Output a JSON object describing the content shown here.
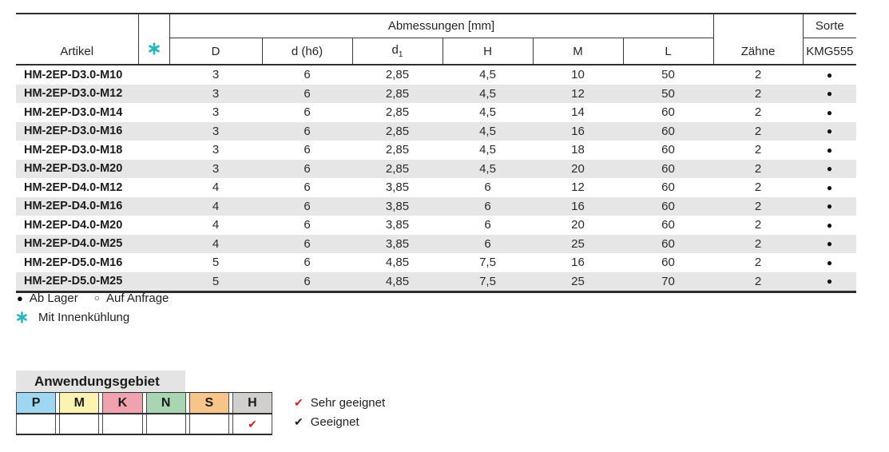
{
  "colors": {
    "accent_teal": "#2ab5c1",
    "check_red": "#d3222a",
    "check_black": "#1d1d1d",
    "row_stripe": "#e6e6e6",
    "anw_header_bg": "#e4e4e4"
  },
  "table": {
    "header": {
      "artikel": "Artikel",
      "abmessungen": "Abmessungen [mm]",
      "dims": [
        "D",
        "d (h6)",
        "d",
        "H",
        "M",
        "L"
      ],
      "d1_sub": "1",
      "zaehne": "Zähne",
      "sorte": "Sorte",
      "sorte_sub": "KMG555"
    },
    "rows": [
      {
        "artikel": "HM-2EP-D3.0-M10",
        "D": "3",
        "d_h6": "6",
        "d1": "2,85",
        "H": "4,5",
        "M": "10",
        "L": "50",
        "zaehne": "2",
        "sorte": "●"
      },
      {
        "artikel": "HM-2EP-D3.0-M12",
        "D": "3",
        "d_h6": "6",
        "d1": "2,85",
        "H": "4,5",
        "M": "12",
        "L": "50",
        "zaehne": "2",
        "sorte": "●"
      },
      {
        "artikel": "HM-2EP-D3.0-M14",
        "D": "3",
        "d_h6": "6",
        "d1": "2,85",
        "H": "4,5",
        "M": "14",
        "L": "60",
        "zaehne": "2",
        "sorte": "●"
      },
      {
        "artikel": "HM-2EP-D3.0-M16",
        "D": "3",
        "d_h6": "6",
        "d1": "2,85",
        "H": "4,5",
        "M": "16",
        "L": "60",
        "zaehne": "2",
        "sorte": "●"
      },
      {
        "artikel": "HM-2EP-D3.0-M18",
        "D": "3",
        "d_h6": "6",
        "d1": "2,85",
        "H": "4,5",
        "M": "18",
        "L": "60",
        "zaehne": "2",
        "sorte": "●"
      },
      {
        "artikel": "HM-2EP-D3.0-M20",
        "D": "3",
        "d_h6": "6",
        "d1": "2,85",
        "H": "4,5",
        "M": "20",
        "L": "60",
        "zaehne": "2",
        "sorte": "●"
      },
      {
        "artikel": "HM-2EP-D4.0-M12",
        "D": "4",
        "d_h6": "6",
        "d1": "3,85",
        "H": "6",
        "M": "12",
        "L": "60",
        "zaehne": "2",
        "sorte": "●"
      },
      {
        "artikel": "HM-2EP-D4.0-M16",
        "D": "4",
        "d_h6": "6",
        "d1": "3,85",
        "H": "6",
        "M": "16",
        "L": "60",
        "zaehne": "2",
        "sorte": "●"
      },
      {
        "artikel": "HM-2EP-D4.0-M20",
        "D": "4",
        "d_h6": "6",
        "d1": "3,85",
        "H": "6",
        "M": "20",
        "L": "60",
        "zaehne": "2",
        "sorte": "●"
      },
      {
        "artikel": "HM-2EP-D4.0-M25",
        "D": "4",
        "d_h6": "6",
        "d1": "3,85",
        "H": "6",
        "M": "25",
        "L": "60",
        "zaehne": "2",
        "sorte": "●"
      },
      {
        "artikel": "HM-2EP-D5.0-M16",
        "D": "5",
        "d_h6": "6",
        "d1": "4,85",
        "H": "7,5",
        "M": "16",
        "L": "60",
        "zaehne": "2",
        "sorte": "●"
      },
      {
        "artikel": "HM-2EP-D5.0-M25",
        "D": "5",
        "d_h6": "6",
        "d1": "4,85",
        "H": "7,5",
        "M": "25",
        "L": "70",
        "zaehne": "2",
        "sorte": "●"
      }
    ]
  },
  "legend": {
    "filled_symbol": "●",
    "ab_lager": "Ab Lager",
    "open_symbol": "○",
    "auf_anfrage": "Auf Anfrage",
    "innenkuehlung": "Mit Innenkühlung"
  },
  "anwendungsgebiet": {
    "title": "Anwendungsgebiet",
    "check_symbol": "✔",
    "columns": [
      {
        "label": "P",
        "color": "#9ed7f2",
        "checked": false
      },
      {
        "label": "M",
        "color": "#fbf3af",
        "checked": false
      },
      {
        "label": "K",
        "color": "#f0a3af",
        "checked": false
      },
      {
        "label": "N",
        "color": "#a9d5b3",
        "checked": false
      },
      {
        "label": "S",
        "color": "#f7c489",
        "checked": false
      },
      {
        "label": "H",
        "color": "#d1cfce",
        "checked": true
      }
    ],
    "check_legend": [
      {
        "symbol": "✔",
        "color": "#d3222a",
        "label": "Sehr geeignet"
      },
      {
        "symbol": "✔",
        "color": "#1d1d1d",
        "label": "Geeignet"
      }
    ]
  }
}
